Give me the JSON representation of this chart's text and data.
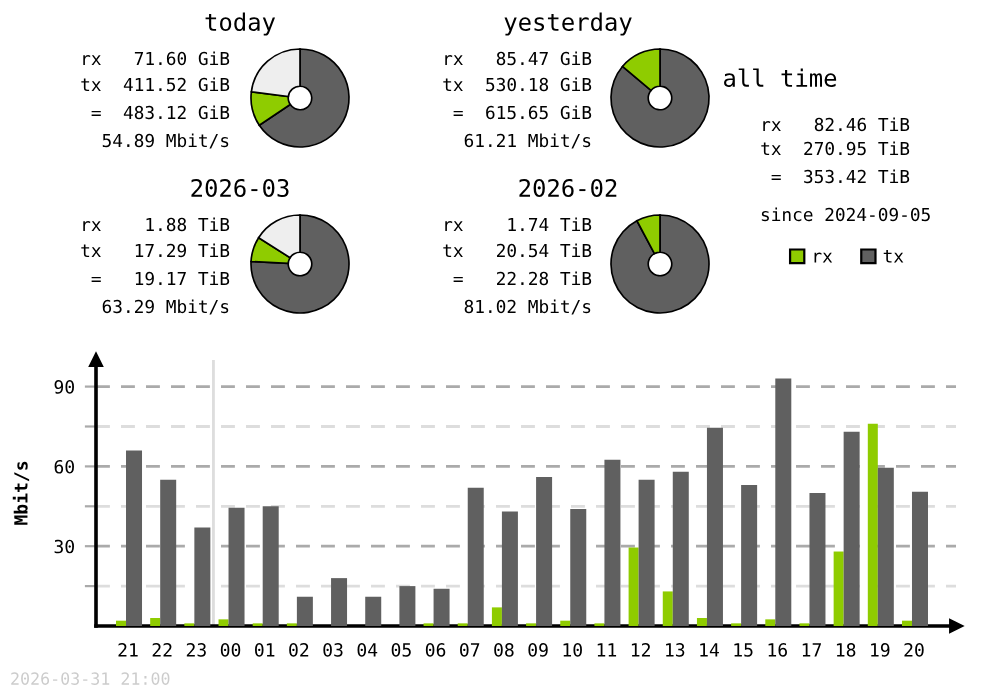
{
  "chart_data": [
    {
      "type": "donut",
      "title": "today",
      "categories": [
        null,
        null,
        null
      ],
      "values": [
        65.6,
        11.4,
        23
      ],
      "colors": [
        "#606060",
        "#8fcc00",
        "#eeeeee"
      ],
      "annotations": [
        "rx   71.60 GiB",
        "tx  411.52 GiB",
        " =  483.12 GiB",
        "54.89 Mbit/s"
      ]
    },
    {
      "type": "donut",
      "title": "yesterday",
      "categories": [
        null,
        null
      ],
      "values": [
        86.12,
        13.88
      ],
      "colors": [
        "#606060",
        "#8fcc00"
      ],
      "annotations": [
        "rx   85.47 GiB",
        "tx  530.18 GiB",
        " =  615.65 GiB",
        "61.21 Mbit/s"
      ]
    },
    {
      "type": "donut",
      "title": "2026-03",
      "categories": [
        null,
        null,
        null
      ],
      "values": [
        75.8,
        8.2,
        16
      ],
      "colors": [
        "#606060",
        "#8fcc00",
        "#eeeeee"
      ],
      "annotations": [
        "rx    1.88 TiB",
        "tx   17.29 TiB",
        " =   19.17 TiB",
        "63.29 Mbit/s"
      ]
    },
    {
      "type": "donut",
      "title": "2026-02",
      "categories": [
        null,
        null
      ],
      "values": [
        92.19,
        7.81
      ],
      "colors": [
        "#606060",
        "#8fcc00"
      ],
      "annotations": [
        "rx    1.74 TiB",
        "tx   20.54 TiB",
        " =   22.28 TiB",
        "81.02 Mbit/s"
      ]
    },
    {
      "type": "other",
      "title": "all time",
      "annotations": [
        "rx   82.46 TiB",
        "tx  270.95 TiB",
        " =  353.42 TiB",
        "since 2024-09-05"
      ]
    },
    {
      "type": "bar",
      "ylabel": "Mbit/s",
      "categories": [
        "21",
        "22",
        "23",
        "00",
        "01",
        "02",
        "03",
        "04",
        "05",
        "06",
        "07",
        "08",
        "09",
        "10",
        "11",
        "12",
        "13",
        "14",
        "15",
        "16",
        "17",
        "18",
        "19",
        "20"
      ],
      "series": [
        {
          "name": "rx",
          "color": "#8fcc00",
          "values": [
            2,
            3,
            1,
            2.5,
            1,
            1,
            0,
            0,
            0,
            1,
            1,
            7,
            1,
            2,
            1,
            29.5,
            13,
            3,
            1,
            2.5,
            1,
            28,
            76,
            2
          ]
        },
        {
          "name": "tx",
          "color": "#606060",
          "values": [
            66,
            55,
            37,
            44.5,
            45,
            11,
            18,
            11,
            15,
            14,
            52,
            43,
            56,
            44,
            62.5,
            55,
            58,
            74.5,
            53,
            93,
            50,
            73,
            59.5,
            50.5
          ]
        }
      ],
      "ylim": [
        0,
        100
      ],
      "yticks": [
        {
          "value": 15,
          "label": null
        },
        30,
        {
          "value": 45,
          "label": null
        },
        60,
        {
          "value": 75,
          "label": null
        },
        90
      ],
      "grid": "y",
      "legend": "top right",
      "ref_lines": [
        {
          "axis": "x",
          "value": "00",
          "color": "#dddddd"
        }
      ],
      "annotations": [
        "2026-03-31 21:00"
      ]
    }
  ]
}
